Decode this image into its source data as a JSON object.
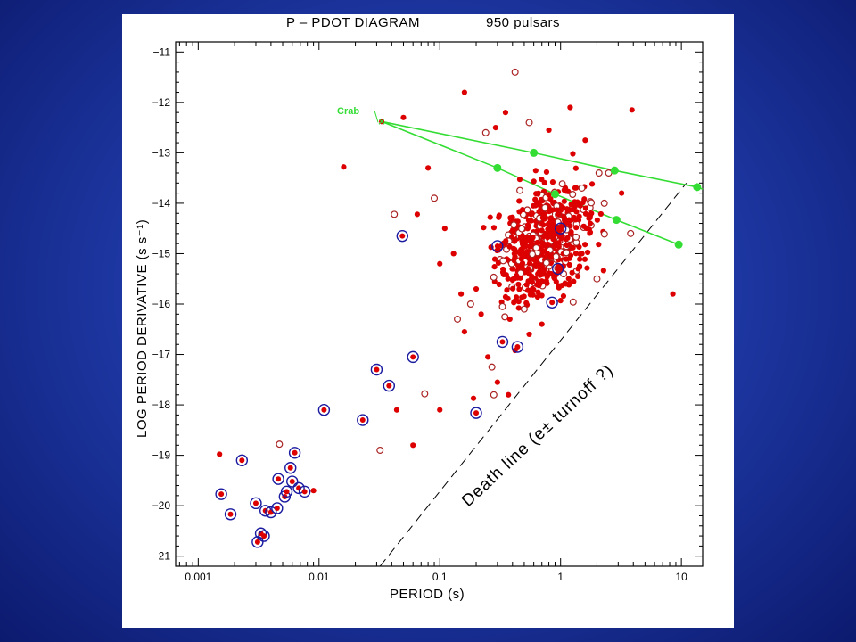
{
  "colors": {
    "background": "#1f3aa8",
    "panel": "#ffffff",
    "pulsar_filled": "#dd0000",
    "pulsar_open": "#aa2222",
    "binary_ring": "#1a1aa0",
    "track_green": "#33dd33"
  },
  "chart_data": {
    "type": "scatter",
    "title_left": "P – PDOT  DIAGRAM",
    "title_right": "950 pulsars",
    "xlabel": "PERIOD   (s)",
    "ylabel": "LOG PERIOD DERIVATIVE   (s s⁻¹)",
    "x_scale": "log",
    "xlim": [
      0.00065,
      15
    ],
    "ylim": [
      -21.2,
      -10.8
    ],
    "x_ticks": [
      {
        "value": 0.001,
        "label": "0.001"
      },
      {
        "value": 0.01,
        "label": "0.01"
      },
      {
        "value": 0.1,
        "label": "0.1"
      },
      {
        "value": 1,
        "label": "1"
      },
      {
        "value": 10,
        "label": "10"
      }
    ],
    "y_ticks": [
      -11,
      -12,
      -13,
      -14,
      -15,
      -16,
      -17,
      -18,
      -19,
      -20,
      -21
    ],
    "grid": false,
    "annotations": {
      "crab_label": "Crab",
      "death_line_label": "Death line (e± turnoff ?)"
    },
    "death_line": [
      [
        0.032,
        -21.2
      ],
      [
        11,
        -13.6
      ]
    ],
    "crab_tracks": [
      [
        [
          0.033,
          -12.38
        ],
        [
          0.6,
          -13.0
        ],
        [
          2.8,
          -13.35
        ],
        [
          13.5,
          -13.68
        ],
        [
          15,
          -13.72
        ]
      ],
      [
        [
          0.033,
          -12.38
        ],
        [
          0.3,
          -13.3
        ],
        [
          0.9,
          -13.82
        ],
        [
          2.9,
          -14.33
        ],
        [
          9.5,
          -14.82
        ]
      ]
    ],
    "track_points": [
      [
        0.6,
        -13.0
      ],
      [
        2.8,
        -13.35
      ],
      [
        13.5,
        -13.68
      ],
      [
        0.3,
        -13.3
      ],
      [
        0.9,
        -13.82
      ],
      [
        2.9,
        -14.33
      ],
      [
        9.5,
        -14.82
      ]
    ],
    "crab_point": [
      0.033,
      -12.38
    ],
    "binary_pulsars": [
      [
        0.00155,
        -19.77
      ],
      [
        0.00185,
        -20.17
      ],
      [
        0.0023,
        -19.1
      ],
      [
        0.003,
        -19.95
      ],
      [
        0.0031,
        -20.72
      ],
      [
        0.0033,
        -20.55
      ],
      [
        0.0035,
        -20.6
      ],
      [
        0.0036,
        -20.1
      ],
      [
        0.004,
        -20.13
      ],
      [
        0.0045,
        -20.05
      ],
      [
        0.0046,
        -19.47
      ],
      [
        0.0052,
        -19.82
      ],
      [
        0.0054,
        -19.72
      ],
      [
        0.0058,
        -19.25
      ],
      [
        0.006,
        -19.52
      ],
      [
        0.0063,
        -18.95
      ],
      [
        0.0068,
        -19.65
      ],
      [
        0.0076,
        -19.72
      ],
      [
        0.011,
        -18.1
      ],
      [
        0.023,
        -18.3
      ],
      [
        0.03,
        -17.3
      ],
      [
        0.038,
        -17.62
      ],
      [
        0.049,
        -14.65
      ],
      [
        0.06,
        -17.05
      ],
      [
        0.2,
        -18.16
      ],
      [
        0.33,
        -16.75
      ],
      [
        0.44,
        -16.85
      ],
      [
        0.85,
        -15.97
      ],
      [
        0.95,
        -15.3
      ],
      [
        1.0,
        -14.5
      ],
      [
        0.3,
        -14.85
      ]
    ],
    "isolated_pulsars_sample": [
      [
        0.0015,
        -18.98
      ],
      [
        0.0047,
        -18.78
      ],
      [
        0.009,
        -19.7
      ],
      [
        0.016,
        -13.28
      ],
      [
        0.032,
        -18.9
      ],
      [
        0.044,
        -18.1
      ],
      [
        0.06,
        -18.8
      ],
      [
        0.075,
        -17.78
      ],
      [
        0.1,
        -18.1
      ],
      [
        0.19,
        -17.87
      ],
      [
        0.28,
        -17.8
      ],
      [
        0.3,
        -17.55
      ],
      [
        0.37,
        -17.8
      ],
      [
        0.42,
        -11.4
      ],
      [
        0.16,
        -11.8
      ],
      [
        0.05,
        -12.3
      ],
      [
        0.042,
        -14.22
      ],
      [
        0.1,
        -15.2
      ],
      [
        0.15,
        -15.8
      ],
      [
        0.14,
        -16.3
      ],
      [
        0.16,
        -16.55
      ],
      [
        0.25,
        -17.05
      ],
      [
        0.27,
        -17.25
      ],
      [
        0.42,
        -16.92
      ],
      [
        0.55,
        -16.6
      ],
      [
        1.5,
        -13.7
      ],
      [
        1.2,
        -12.1
      ],
      [
        3.9,
        -12.15
      ],
      [
        3.8,
        -14.6
      ],
      [
        8.5,
        -15.8
      ],
      [
        1.4,
        -15.3
      ],
      [
        2.0,
        -15.5
      ],
      [
        0.065,
        -14.22
      ],
      [
        0.08,
        -13.3
      ],
      [
        0.09,
        -13.9
      ],
      [
        0.11,
        -14.5
      ],
      [
        0.13,
        -15.0
      ],
      [
        0.18,
        -16.0
      ],
      [
        0.2,
        -15.7
      ],
      [
        0.22,
        -16.2
      ],
      [
        0.24,
        -12.6
      ],
      [
        0.29,
        -12.5
      ],
      [
        0.35,
        -12.2
      ],
      [
        0.55,
        -12.4
      ],
      [
        0.8,
        -12.55
      ],
      [
        1.6,
        -12.75
      ],
      [
        2.5,
        -13.4
      ],
      [
        3.2,
        -13.8
      ],
      [
        1.8,
        -14.2
      ],
      [
        2.3,
        -14.0
      ],
      [
        1.1,
        -15.6
      ],
      [
        0.7,
        -16.4
      ],
      [
        0.5,
        -16.1
      ],
      [
        0.45,
        -15.95
      ],
      [
        0.38,
        -16.3
      ],
      [
        0.33,
        -16.05
      ]
    ]
  }
}
